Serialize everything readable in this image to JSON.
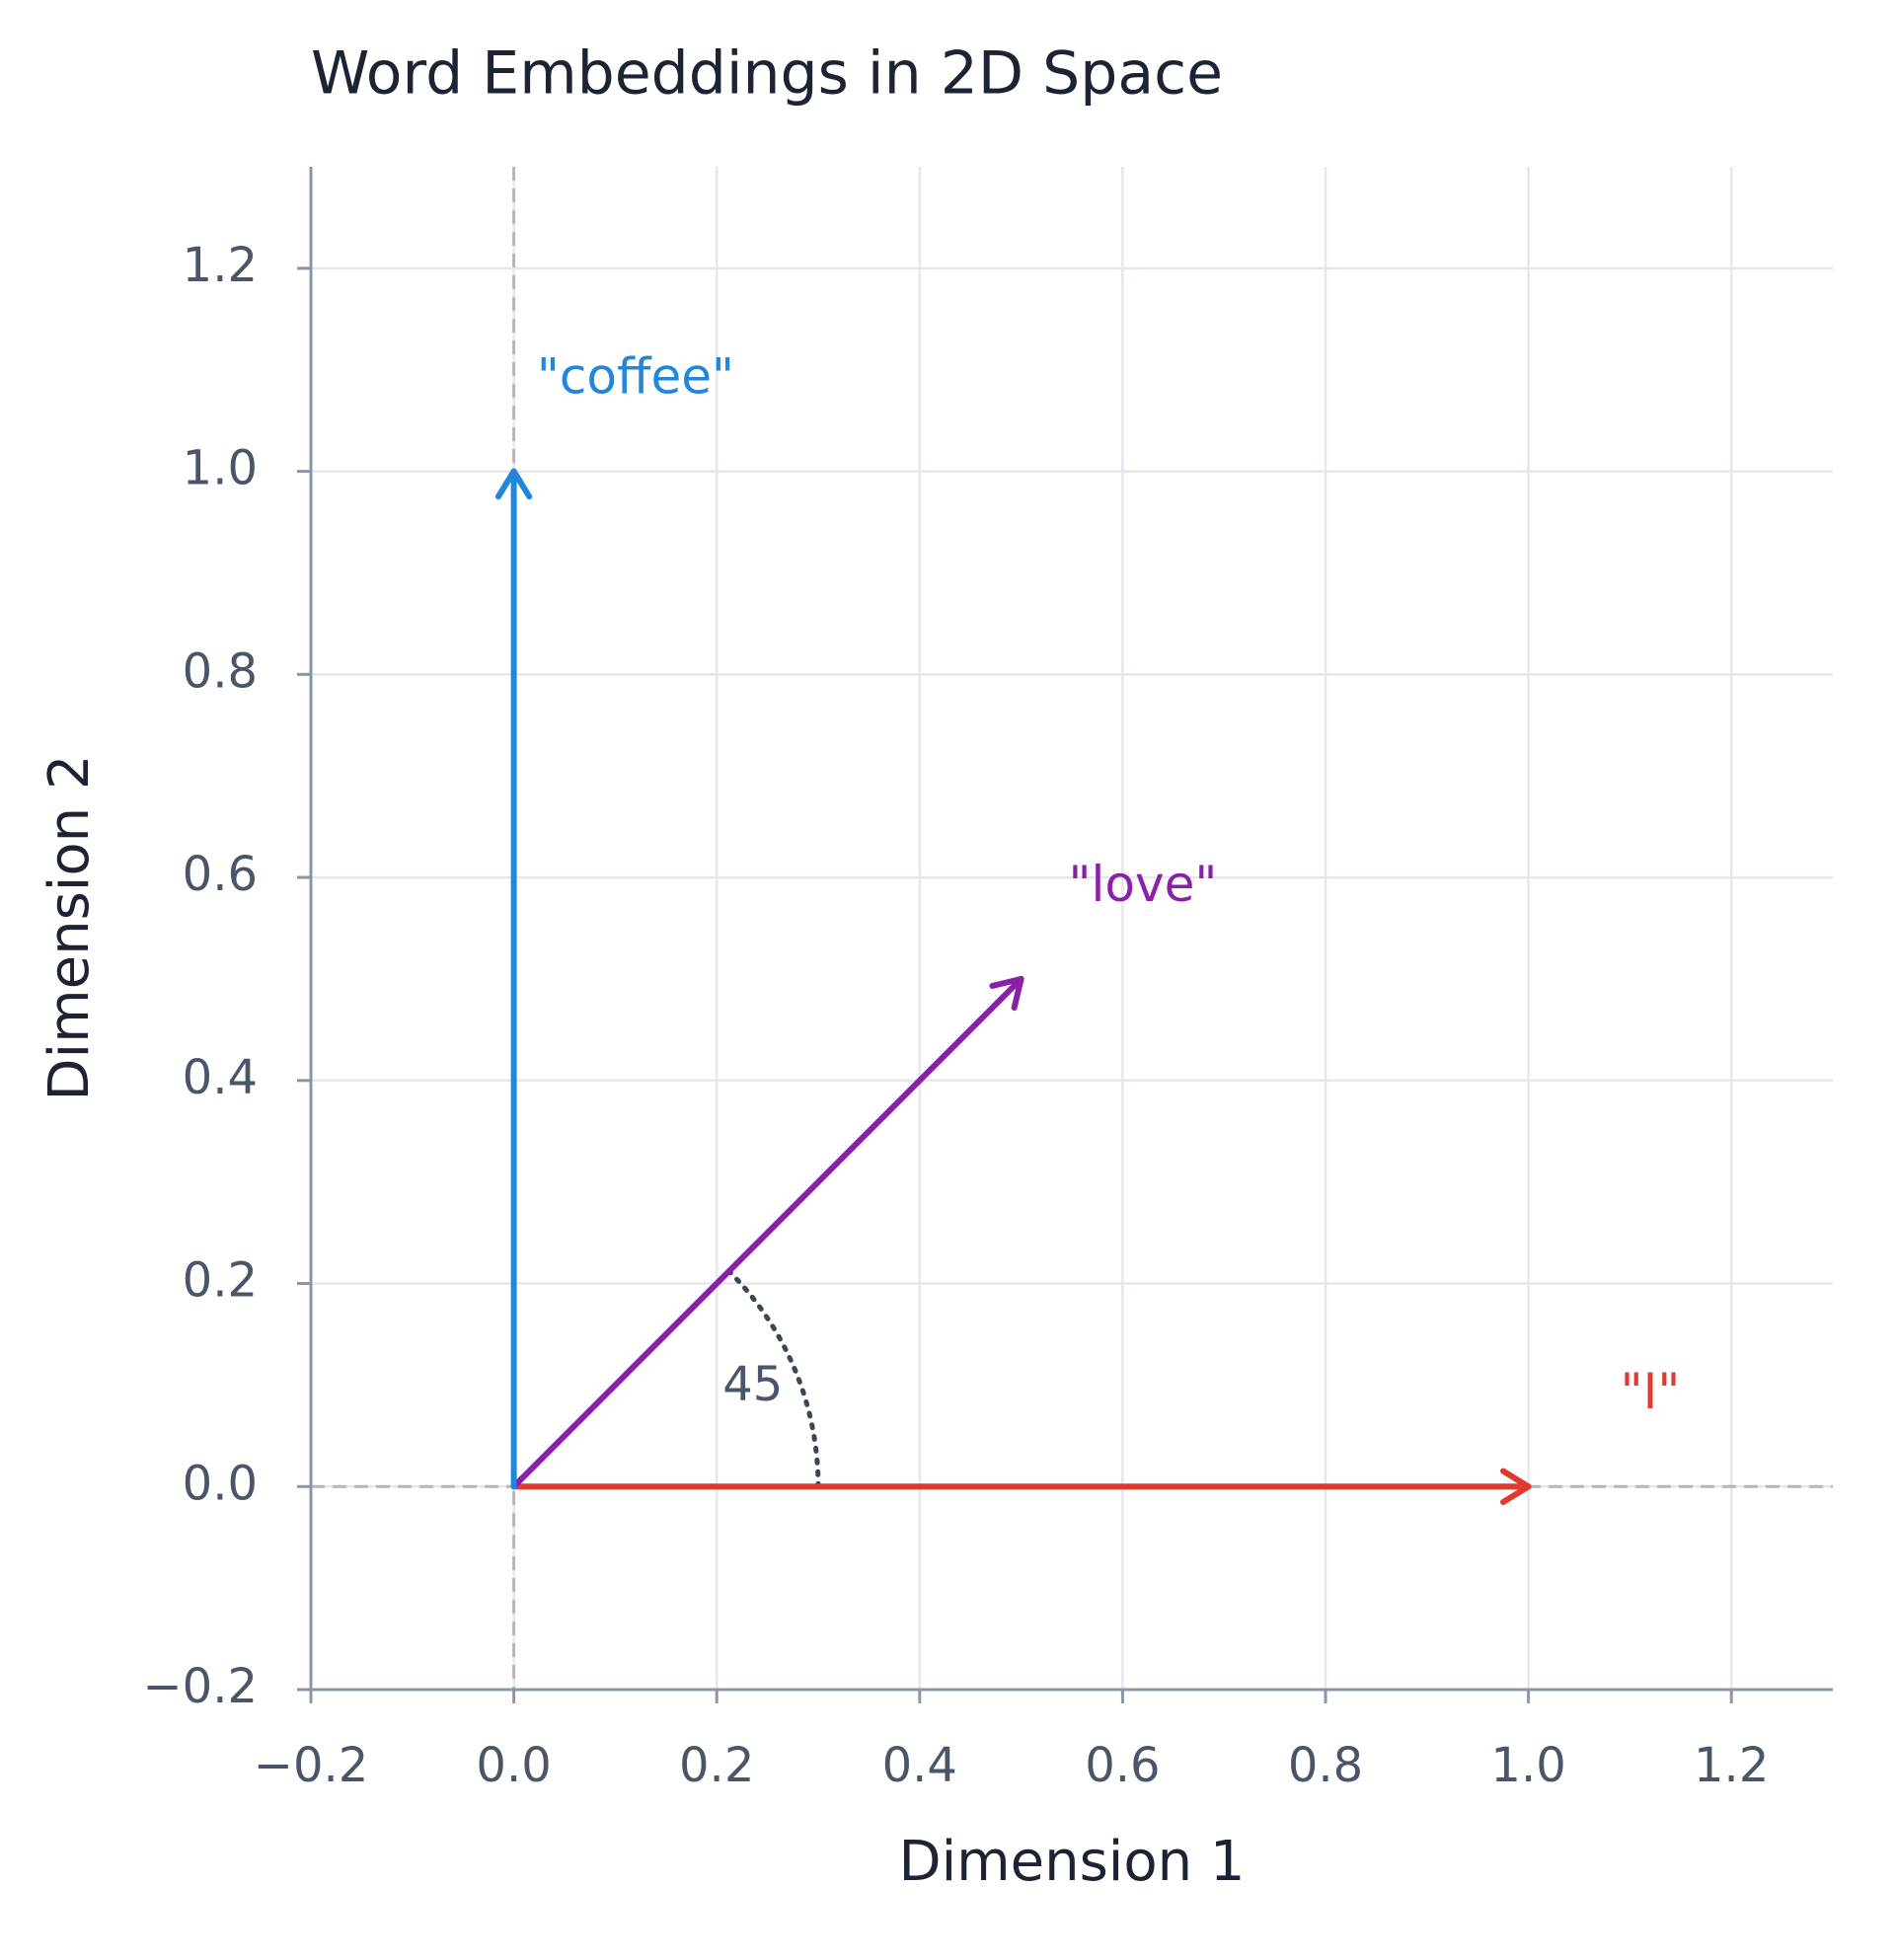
{
  "chart_data": {
    "type": "vector",
    "title": "Word Embeddings in 2D Space",
    "x_label": "Dimension 1",
    "y_label": "Dimension 2",
    "series": [
      {
        "name": "\"I\"",
        "color": "#e0392f",
        "x": 1,
        "y": 0
      },
      {
        "name": "\"love\"",
        "color": "#8a1fa8",
        "x": 0.5,
        "y": 0.5
      },
      {
        "name": "\"coffee\"",
        "color": "#2186dd",
        "x": 0,
        "y": 1
      }
    ],
    "angle": 45,
    "xlim": [
      -0.2,
      1.3
    ],
    "ylim": [
      -0.2,
      1.3
    ],
    "xticks": [
      {
        "value": -0.2,
        "label": "−0.2"
      },
      {
        "value": 0,
        "label": "0.0"
      },
      0.2,
      0.4,
      0.6,
      0.8,
      {
        "value": 1,
        "label": "1.0"
      },
      1.2
    ],
    "yticks": [
      {
        "value": -0.2,
        "label": "−0.2"
      },
      {
        "value": 0,
        "label": "0.0"
      },
      0.2,
      0.4,
      0.6,
      0.8,
      {
        "value": 1,
        "label": "1.0"
      },
      1.2
    ],
    "grid": true
  }
}
